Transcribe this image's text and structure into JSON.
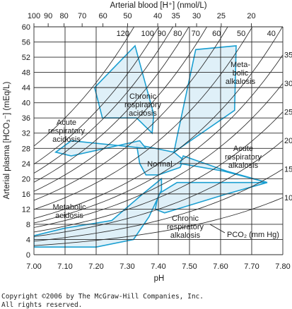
{
  "chart_data": {
    "type": "line",
    "title": "",
    "xlabel": "pH",
    "ylabel": "Arterial plasma [HCO₃⁻] (mEq/L)",
    "top_axis_label": "Arterial blood [H⁺] (nmol/L)",
    "xlim": [
      7.0,
      7.8
    ],
    "ylim": [
      0,
      60
    ],
    "grid": true,
    "x_ticks": [
      "7.00",
      "7.10",
      "7.20",
      "7.30",
      "7.40",
      "7.50",
      "7.60",
      "7.70",
      "7.80"
    ],
    "y_ticks": [
      "0",
      "4",
      "8",
      "12",
      "16",
      "20",
      "24",
      "28",
      "32",
      "36",
      "40",
      "44",
      "48",
      "52",
      "56",
      "60"
    ],
    "top_ticks": [
      {
        "label": "100",
        "h": 100
      },
      {
        "label": "90",
        "h": 90
      },
      {
        "label": "80",
        "h": 80
      },
      {
        "label": "70",
        "h": 70
      },
      {
        "label": "60",
        "h": 60
      },
      {
        "label": "50",
        "h": 50
      },
      {
        "label": "40",
        "h": 40
      },
      {
        "label": "35",
        "h": 35
      },
      {
        "label": "30",
        "h": 30
      },
      {
        "label": "25",
        "h": 25
      },
      {
        "label": "20",
        "h": 20
      }
    ],
    "isobars_pco2_mmHg": [
      10,
      15,
      20,
      25,
      30,
      35,
      40,
      50,
      60,
      70,
      80,
      90,
      100,
      120
    ],
    "isobar_labels_top": [
      {
        "label": "120",
        "pco2": 120
      },
      {
        "label": "100",
        "pco2": 100
      },
      {
        "label": "90",
        "pco2": 90
      },
      {
        "label": "80",
        "pco2": 80
      },
      {
        "label": "70",
        "pco2": 70
      },
      {
        "label": "60",
        "pco2": 60
      },
      {
        "label": "50",
        "pco2": 50
      },
      {
        "label": "40",
        "pco2": 40
      }
    ],
    "isobar_labels_right": [
      {
        "label": "35",
        "pco2": 35
      },
      {
        "label": "30",
        "pco2": 30
      },
      {
        "label": "25",
        "pco2": 25
      },
      {
        "label": "20",
        "pco2": 20
      },
      {
        "label": "15",
        "pco2": 15
      },
      {
        "label": "10",
        "pco2": 10
      }
    ],
    "pco2_label": "PCO₂ (mm Hg)",
    "regions": [
      {
        "name": "Normal",
        "points": [
          [
            7.33,
            29
          ],
          [
            7.45,
            27
          ],
          [
            7.48,
            25
          ],
          [
            7.47,
            23
          ],
          [
            7.4,
            21
          ],
          [
            7.36,
            21
          ],
          [
            7.34,
            24
          ]
        ]
      },
      {
        "name": "Chronic respiratory acidosis",
        "points": [
          [
            7.195,
            44
          ],
          [
            7.325,
            55
          ],
          [
            7.385,
            37
          ],
          [
            7.38,
            32
          ],
          [
            7.33,
            36
          ],
          [
            7.22,
            36
          ]
        ]
      },
      {
        "name": "Acute respiratory acidosis",
        "points": [
          [
            7.07,
            27
          ],
          [
            7.12,
            30
          ],
          [
            7.36,
            28
          ],
          [
            7.34,
            30
          ],
          [
            7.12,
            26
          ]
        ]
      },
      {
        "name": "Metabolic alkalosis",
        "points": [
          [
            7.46,
            31
          ],
          [
            7.52,
            54
          ],
          [
            7.65,
            55
          ],
          [
            7.645,
            38
          ],
          [
            7.45,
            27
          ]
        ]
      },
      {
        "name": "Acute respiratory alkalosis",
        "points": [
          [
            7.47,
            24
          ],
          [
            7.61,
            22
          ],
          [
            7.75,
            19
          ],
          [
            7.62,
            22
          ],
          [
            7.48,
            26
          ]
        ]
      },
      {
        "name": "Chronic respiratory alkalosis",
        "points": [
          [
            7.4,
            16
          ],
          [
            7.46,
            19
          ],
          [
            7.75,
            19
          ],
          [
            7.62,
            16
          ],
          [
            7.42,
            11
          ],
          [
            7.39,
            12
          ]
        ]
      },
      {
        "name": "Metabolic acidosis",
        "points": [
          [
            7.0,
            5
          ],
          [
            7.1,
            7
          ],
          [
            7.25,
            9
          ],
          [
            7.35,
            16
          ],
          [
            7.41,
            20
          ],
          [
            7.41,
            17
          ],
          [
            7.37,
            10
          ],
          [
            7.32,
            4
          ],
          [
            7.2,
            2
          ],
          [
            7.0,
            2
          ]
        ]
      }
    ],
    "annotations": [
      {
        "name": "normal",
        "lines": [
          "Normal"
        ]
      },
      {
        "name": "chronic-respiratory-acidosis",
        "lines": [
          "Chronic",
          "respiratory",
          "acidosis"
        ]
      },
      {
        "name": "acute-respiratory-acidosis",
        "lines": [
          "Acute",
          "respiratory",
          "acidosis"
        ]
      },
      {
        "name": "metabolic-alkalosis",
        "lines": [
          "Meta-",
          "bolic",
          "alkalosis"
        ]
      },
      {
        "name": "acute-respiratory-alkalosis",
        "lines": [
          "Acute",
          "respiratory",
          "alkalosis"
        ]
      },
      {
        "name": "metabolic-acidosis",
        "lines": [
          "Metabolic",
          "acidosis"
        ]
      },
      {
        "name": "chronic-respiratory-alkalosis",
        "lines": [
          "Chronic",
          "respiratory",
          "alkalosis"
        ]
      }
    ]
  },
  "copyright": {
    "line1": "Copyright ©2006 by The McGraw-Hill Companies, Inc.",
    "line2": "All rights reserved."
  },
  "colors": {
    "region_fill": "#dbeef7",
    "region_stroke": "#1b9fd1",
    "grid": "#2a2a2a"
  }
}
